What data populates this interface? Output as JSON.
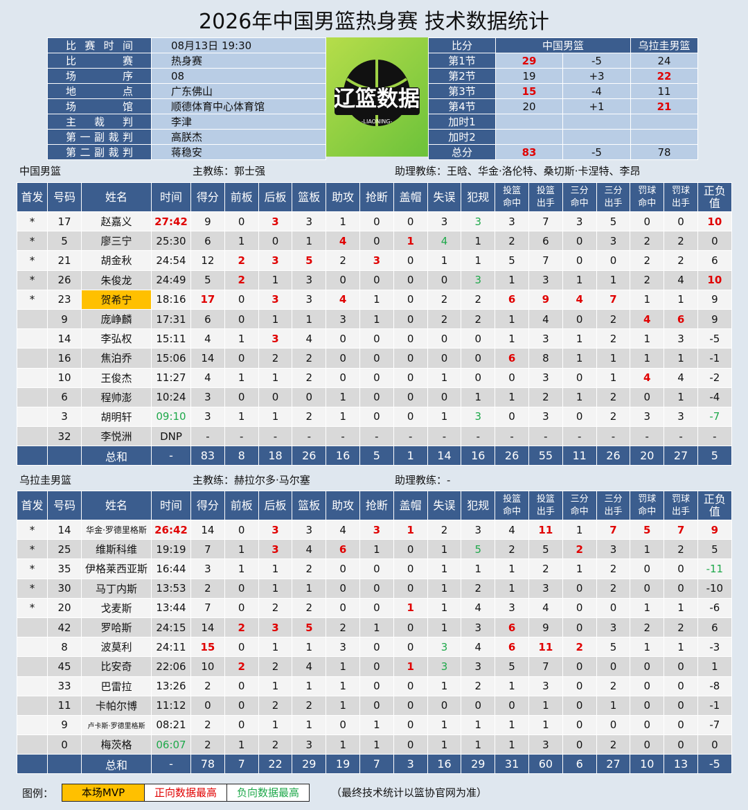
{
  "title": "2026年中国男篮热身赛 技术数据统计",
  "info": {
    "rows": [
      [
        "比 赛 时 间",
        "08月13日 19:30"
      ],
      [
        "比 赛",
        "热身赛"
      ],
      [
        "场 序",
        "08"
      ],
      [
        "地 点",
        "广东佛山"
      ],
      [
        "场 馆",
        "顺德体育中心体育馆"
      ],
      [
        "主 裁 判",
        "李津"
      ],
      [
        "第一副裁判",
        "高朕杰"
      ],
      [
        "第二副裁判",
        "蒋稳安"
      ]
    ]
  },
  "logo": {
    "text": "辽篮数据",
    "sub": "-LIAONING-"
  },
  "score": {
    "header": [
      "比分",
      "中国男篮",
      "乌拉圭男篮"
    ],
    "rows": [
      [
        "第1节",
        "29",
        "-5",
        "24"
      ],
      [
        "第2节",
        "19",
        "+3",
        "22"
      ],
      [
        "第3节",
        "15",
        "-4",
        "11"
      ],
      [
        "第4节",
        "20",
        "+1",
        "21"
      ],
      [
        "加时1"
      ],
      [
        "加时2"
      ],
      [
        "总分",
        "83",
        "-5",
        "78"
      ]
    ],
    "red": [
      [
        0,
        1
      ],
      [
        1,
        3
      ],
      [
        2,
        1
      ],
      [
        3,
        3
      ],
      [
        6,
        1
      ]
    ]
  },
  "teams": [
    {
      "name": "中国男篮",
      "coach": "主教练：郭士强",
      "assistant": "助理教练：王晗、华金·洛伦特、桑切斯·卡涅特、李昂",
      "header": [
        "首发",
        "号码",
        "姓名",
        "时间",
        "得分",
        "前板",
        "后板",
        "篮板",
        "助攻",
        "抢断",
        "盖帽",
        "失误",
        "犯规",
        "投篮\n命中",
        "投篮\n出手",
        "三分\n命中",
        "三分\n出手",
        "罚球\n命中",
        "罚球\n出手",
        "正负值"
      ],
      "rows": [
        [
          "*",
          "17",
          "赵嘉义",
          "27:42",
          "9",
          "0",
          "3",
          "3",
          "1",
          "0",
          "0",
          "3",
          "3",
          "3",
          "7",
          "3",
          "5",
          "0",
          "0",
          "10"
        ],
        [
          "*",
          "5",
          "廖三宁",
          "25:30",
          "6",
          "1",
          "0",
          "1",
          "4",
          "0",
          "1",
          "4",
          "1",
          "2",
          "6",
          "0",
          "3",
          "2",
          "2",
          "0"
        ],
        [
          "*",
          "21",
          "胡金秋",
          "24:54",
          "12",
          "2",
          "3",
          "5",
          "2",
          "3",
          "0",
          "1",
          "1",
          "5",
          "7",
          "0",
          "0",
          "2",
          "2",
          "6"
        ],
        [
          "*",
          "26",
          "朱俊龙",
          "24:49",
          "5",
          "2",
          "1",
          "3",
          "0",
          "0",
          "0",
          "0",
          "3",
          "1",
          "3",
          "1",
          "1",
          "2",
          "4",
          "10"
        ],
        [
          "*",
          "23",
          "贺希宁",
          "18:16",
          "17",
          "0",
          "3",
          "3",
          "4",
          "1",
          "0",
          "2",
          "2",
          "6",
          "9",
          "4",
          "7",
          "1",
          "1",
          "9"
        ],
        [
          null,
          "9",
          "庞峥麟",
          "17:31",
          "6",
          "0",
          "1",
          "1",
          "3",
          "1",
          "0",
          "2",
          "2",
          "1",
          "4",
          "0",
          "2",
          "4",
          "6",
          "9"
        ],
        [
          null,
          "14",
          "李弘权",
          "15:11",
          "4",
          "1",
          "3",
          "4",
          "0",
          "0",
          "0",
          "0",
          "0",
          "1",
          "3",
          "1",
          "2",
          "1",
          "3",
          "-5"
        ],
        [
          null,
          "16",
          "焦泊乔",
          "15:06",
          "14",
          "0",
          "2",
          "2",
          "0",
          "0",
          "0",
          "0",
          "0",
          "6",
          "8",
          "1",
          "1",
          "1",
          "1",
          "-1"
        ],
        [
          null,
          "10",
          "王俊杰",
          "11:27",
          "4",
          "1",
          "1",
          "2",
          "0",
          "0",
          "0",
          "1",
          "0",
          "0",
          "3",
          "0",
          "1",
          "4",
          "4",
          "-2"
        ],
        [
          null,
          "6",
          "程帅澎",
          "10:24",
          "3",
          "0",
          "0",
          "0",
          "1",
          "0",
          "0",
          "0",
          "1",
          "1",
          "2",
          "1",
          "2",
          "0",
          "1",
          "-4"
        ],
        [
          null,
          "3",
          "胡明轩",
          "09:10",
          "3",
          "1",
          "1",
          "2",
          "1",
          "0",
          "0",
          "1",
          "3",
          "0",
          "3",
          "0",
          "2",
          "3",
          "3",
          "-7"
        ],
        [
          null,
          "32",
          "李悦洲",
          "DNP",
          "-",
          "-",
          "-",
          "-",
          "-",
          "-",
          "-",
          "-",
          "-",
          "-",
          "-",
          "-",
          "-",
          "-",
          "-",
          "-"
        ]
      ],
      "total": [
        null,
        null,
        "总和",
        "-",
        "83",
        "8",
        "18",
        "26",
        "16",
        "5",
        "1",
        "14",
        "16",
        "26",
        "55",
        "11",
        "26",
        "20",
        "27",
        "5"
      ],
      "red": [
        [
          0,
          3
        ],
        [
          0,
          6
        ],
        [
          0,
          19
        ],
        [
          1,
          8
        ],
        [
          1,
          10
        ],
        [
          2,
          5
        ],
        [
          2,
          6
        ],
        [
          2,
          7
        ],
        [
          2,
          9
        ],
        [
          3,
          5
        ],
        [
          3,
          19
        ],
        [
          4,
          4
        ],
        [
          4,
          6
        ],
        [
          4,
          8
        ],
        [
          4,
          13
        ],
        [
          4,
          14
        ],
        [
          4,
          15
        ],
        [
          4,
          16
        ],
        [
          5,
          17
        ],
        [
          5,
          18
        ],
        [
          6,
          6
        ],
        [
          7,
          13
        ],
        [
          8,
          17
        ]
      ],
      "green": [
        [
          0,
          12
        ],
        [
          1,
          11
        ],
        [
          3,
          12
        ],
        [
          10,
          3
        ],
        [
          10,
          12
        ],
        [
          10,
          19
        ]
      ],
      "mvp": [
        [
          4,
          2
        ]
      ]
    },
    {
      "name": "乌拉圭男篮",
      "coach": "主教练：赫拉尔多·马尔塞",
      "assistant": "助理教练：-",
      "header": [
        "首发",
        "号码",
        "姓名",
        "时间",
        "得分",
        "前板",
        "后板",
        "篮板",
        "助攻",
        "抢断",
        "盖帽",
        "失误",
        "犯规",
        "投篮\n命中",
        "投篮\n出手",
        "三分\n命中",
        "三分\n出手",
        "罚球\n命中",
        "罚球\n出手",
        "正负值"
      ],
      "rows": [
        [
          "*",
          "14",
          "华金·罗德里格斯",
          "26:42",
          "14",
          "0",
          "3",
          "3",
          "4",
          "3",
          "1",
          "2",
          "3",
          "4",
          "11",
          "1",
          "7",
          "5",
          "7",
          "9"
        ],
        [
          "*",
          "25",
          "维斯科维",
          "19:19",
          "7",
          "1",
          "3",
          "4",
          "6",
          "1",
          "0",
          "1",
          "5",
          "2",
          "5",
          "2",
          "3",
          "1",
          "2",
          "5"
        ],
        [
          "*",
          "35",
          "伊格莱西亚斯",
          "16:44",
          "3",
          "1",
          "1",
          "2",
          "0",
          "0",
          "0",
          "1",
          "1",
          "1",
          "2",
          "1",
          "2",
          "0",
          "0",
          "-11"
        ],
        [
          "*",
          "30",
          "马丁内斯",
          "13:53",
          "2",
          "0",
          "1",
          "1",
          "0",
          "0",
          "0",
          "1",
          "2",
          "1",
          "3",
          "0",
          "2",
          "0",
          "0",
          "-10"
        ],
        [
          "*",
          "20",
          "戈麦斯",
          "13:44",
          "7",
          "0",
          "2",
          "2",
          "0",
          "0",
          "1",
          "1",
          "4",
          "3",
          "4",
          "0",
          "0",
          "1",
          "1",
          "-6"
        ],
        [
          null,
          "42",
          "罗哈斯",
          "24:15",
          "14",
          "2",
          "3",
          "5",
          "2",
          "1",
          "0",
          "1",
          "3",
          "6",
          "9",
          "0",
          "3",
          "2",
          "2",
          "6"
        ],
        [
          null,
          "8",
          "波莫利",
          "24:11",
          "15",
          "0",
          "1",
          "1",
          "3",
          "0",
          "0",
          "3",
          "4",
          "6",
          "11",
          "2",
          "5",
          "1",
          "1",
          "-3"
        ],
        [
          null,
          "45",
          "比安奇",
          "22:06",
          "10",
          "2",
          "2",
          "4",
          "1",
          "0",
          "1",
          "3",
          "3",
          "5",
          "7",
          "0",
          "0",
          "0",
          "0",
          "1"
        ],
        [
          null,
          "33",
          "巴雷拉",
          "13:26",
          "2",
          "0",
          "1",
          "1",
          "1",
          "0",
          "0",
          "1",
          "2",
          "1",
          "3",
          "0",
          "2",
          "0",
          "0",
          "-8"
        ],
        [
          null,
          "11",
          "卡帕尔博",
          "11:12",
          "0",
          "0",
          "2",
          "2",
          "1",
          "0",
          "0",
          "0",
          "0",
          "0",
          "1",
          "0",
          "1",
          "0",
          "0",
          "-1"
        ],
        [
          null,
          "9",
          "卢卡斯·罗德里格斯",
          "08:21",
          "2",
          "0",
          "1",
          "1",
          "0",
          "1",
          "0",
          "1",
          "1",
          "1",
          "1",
          "0",
          "0",
          "0",
          "0",
          "-7"
        ],
        [
          null,
          "0",
          "梅茨格",
          "06:07",
          "2",
          "1",
          "2",
          "3",
          "1",
          "1",
          "0",
          "1",
          "1",
          "1",
          "3",
          "0",
          "2",
          "0",
          "0",
          "0"
        ]
      ],
      "total": [
        null,
        null,
        "总和",
        "-",
        "78",
        "7",
        "22",
        "29",
        "19",
        "7",
        "3",
        "16",
        "29",
        "31",
        "60",
        "6",
        "27",
        "10",
        "13",
        "-5"
      ],
      "red": [
        [
          0,
          3
        ],
        [
          0,
          6
        ],
        [
          0,
          9
        ],
        [
          0,
          10
        ],
        [
          0,
          14
        ],
        [
          0,
          16
        ],
        [
          0,
          17
        ],
        [
          0,
          18
        ],
        [
          0,
          19
        ],
        [
          1,
          6
        ],
        [
          1,
          8
        ],
        [
          1,
          15
        ],
        [
          4,
          10
        ],
        [
          5,
          5
        ],
        [
          5,
          6
        ],
        [
          5,
          7
        ],
        [
          5,
          13
        ],
        [
          6,
          4
        ],
        [
          6,
          13
        ],
        [
          6,
          14
        ],
        [
          6,
          15
        ],
        [
          7,
          5
        ],
        [
          7,
          10
        ]
      ],
      "green": [
        [
          1,
          12
        ],
        [
          2,
          19
        ],
        [
          6,
          11
        ],
        [
          7,
          11
        ],
        [
          11,
          3
        ]
      ]
    }
  ],
  "legend": {
    "label": "图例：",
    "items": [
      "本场MVP",
      "正向数据最高",
      "负向数据最高"
    ],
    "note": "（最终技术统计以篮协官网为准）"
  }
}
